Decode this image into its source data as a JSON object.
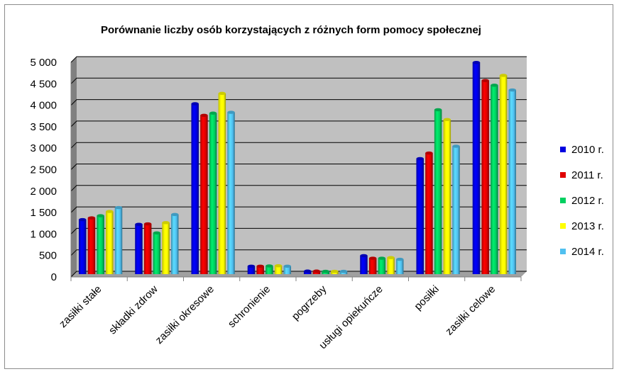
{
  "chart_data": {
    "type": "bar",
    "title": "Porównanie liczby osób korzystających z różnych form pomocy społecznej",
    "categories": [
      "zasiłki stałe",
      "składki zdrow",
      "zasiłki okresowe",
      "schronienie",
      "pogrzeby",
      "usługi opiekuńcze",
      "posiłki",
      "zasiłki celowe"
    ],
    "series": [
      {
        "name": "2010 r.",
        "color": "#0000e0",
        "values": [
          1270,
          1160,
          3970,
          185,
          70,
          430,
          2690,
          4930
        ]
      },
      {
        "name": "2011 r.",
        "color": "#e00000",
        "values": [
          1310,
          1170,
          3700,
          185,
          70,
          370,
          2820,
          4510
        ]
      },
      {
        "name": "2012 r.",
        "color": "#00d060",
        "values": [
          1360,
          960,
          3750,
          190,
          65,
          370,
          3830,
          4400
        ]
      },
      {
        "name": "2013 r.",
        "color": "#ffff00",
        "values": [
          1460,
          1200,
          4210,
          195,
          65,
          385,
          3600,
          4630
        ]
      },
      {
        "name": "2014 r.",
        "color": "#50c0f0",
        "values": [
          1550,
          1390,
          3770,
          185,
          65,
          345,
          2980,
          4290
        ]
      }
    ],
    "y_ticks": [
      "0",
      "500",
      "1 000",
      "1 500",
      "2 000",
      "2 500",
      "3 000",
      "3 500",
      "4 000",
      "4 500",
      "5 000"
    ],
    "ylim": [
      0,
      5000
    ],
    "grid": true,
    "legend_position": "right"
  }
}
